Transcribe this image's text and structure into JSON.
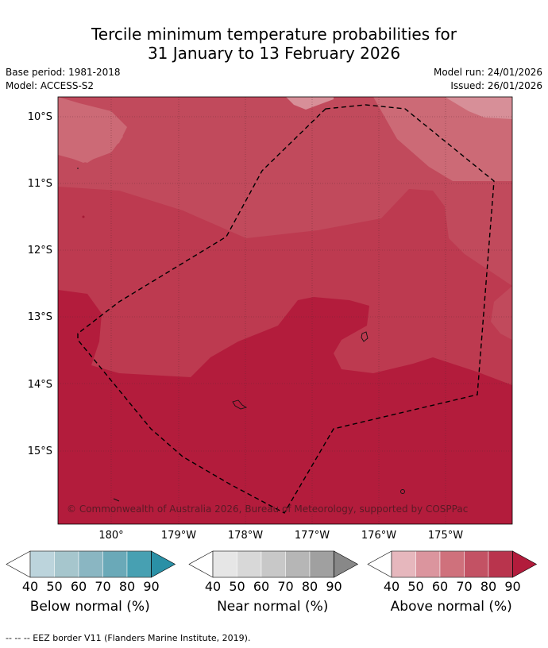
{
  "title_line1": "Tercile minimum temperature probabilities for",
  "title_line2": "31 January to 13 February 2026",
  "base_period": "Base period: 1981-2018",
  "model": "Model: ACCESS-S2",
  "model_run": "Model run: 24/01/2026",
  "issued": "Issued: 26/01/2026",
  "map": {
    "lat_labels": [
      "10°S",
      "11°S",
      "12°S",
      "13°S",
      "14°S",
      "15°S"
    ],
    "lon_labels": [
      "180°",
      "179°W",
      "178°W",
      "177°W",
      "176°W",
      "175°W"
    ],
    "copyright": "© Commonwealth of Australia 2026, Bureau of Meteorology, supported by COSPPac",
    "colors": {
      "above_70": "#cc6a76",
      "above_80": "#c14a5c",
      "above_85": "#bd3a50",
      "above_90": "#b31c3c",
      "above_60": "#d78f98"
    }
  },
  "legends": [
    {
      "name": "Below normal (%)",
      "ticks": [
        "40",
        "50",
        "60",
        "70",
        "80",
        "90"
      ],
      "colors": [
        "#ffffff",
        "#bcd4dc",
        "#a6c6cd",
        "#8ab6c2",
        "#6aa9b8",
        "#47a0b2",
        "#2a90a6"
      ]
    },
    {
      "name": "Near normal (%)",
      "ticks": [
        "40",
        "50",
        "60",
        "70",
        "80",
        "90"
      ],
      "colors": [
        "#ffffff",
        "#e6e6e6",
        "#d8d8d8",
        "#c8c8c8",
        "#b6b6b6",
        "#a0a0a0",
        "#888888"
      ]
    },
    {
      "name": "Above normal (%)",
      "ticks": [
        "40",
        "50",
        "60",
        "70",
        "80",
        "90"
      ],
      "colors": [
        "#ffffff",
        "#e6b7bd",
        "#db959e",
        "#cf717c",
        "#c35264",
        "#b9344d",
        "#b21c3c"
      ]
    }
  ],
  "footnote": "--  --  -- EEZ border V11 (Flanders Marine Institute, 2019)."
}
